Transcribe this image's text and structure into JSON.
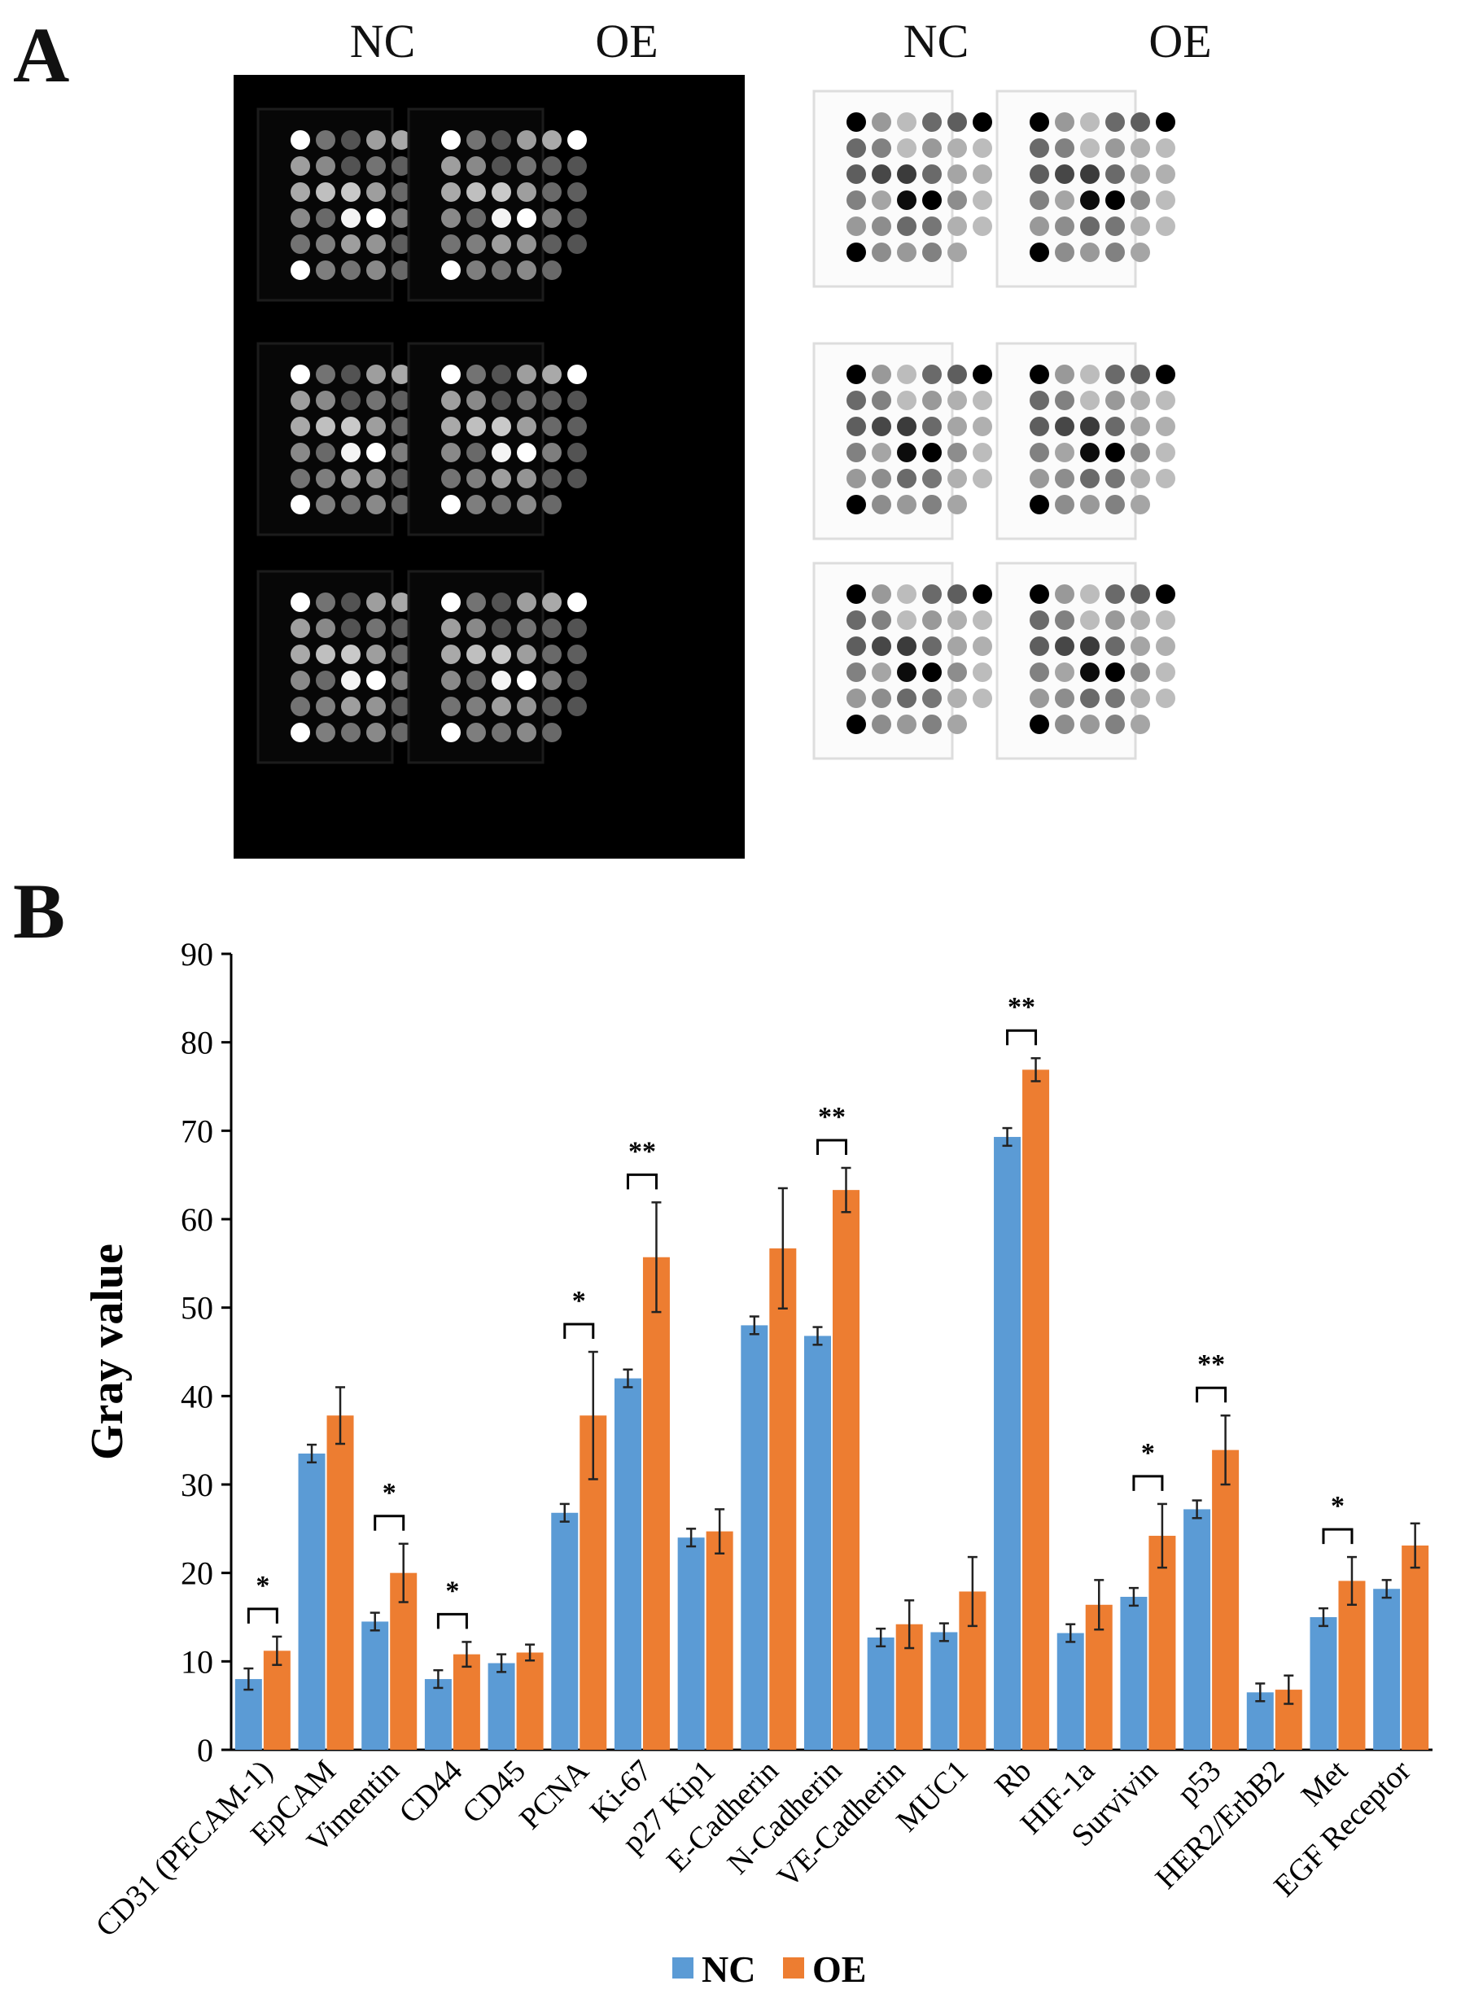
{
  "panels": {
    "a_label": "A",
    "b_label": "B",
    "blot_columns": [
      "NC",
      "OE",
      "NC",
      "OE"
    ]
  },
  "colors": {
    "nc": "#5b9bd5",
    "oe": "#ed7d31",
    "dark_blot_bg": "#000000",
    "light_blot_bg": "#ffffff"
  },
  "chart_data": {
    "type": "bar",
    "title": "",
    "xlabel": "",
    "ylabel": "Gray value",
    "ylim": [
      0,
      90
    ],
    "yticks": [
      0,
      10,
      20,
      30,
      40,
      50,
      60,
      70,
      80,
      90
    ],
    "grid": false,
    "legend_position": "bottom",
    "categories": [
      "CD31 (PECAM-1)",
      "EpCAM",
      "Vimentin",
      "CD44",
      "CD45",
      "PCNA",
      "Ki-67",
      "p27 Kip1",
      "E-Cadherin",
      "N-Cadherin",
      "VE-Cadherin",
      "MUC1",
      "Rb",
      "HIF-1a",
      "Survivin",
      "p53",
      "HER2/ErbB2",
      "Met",
      "EGF Receptor"
    ],
    "series": [
      {
        "name": "NC",
        "values": [
          8,
          33.5,
          14.5,
          8,
          9.8,
          26.8,
          42,
          24,
          48,
          46.8,
          12.7,
          13.3,
          69.3,
          13.2,
          17.3,
          27.2,
          6.5,
          15,
          18.2
        ],
        "errors": [
          1.2,
          1.0,
          1.0,
          1.0,
          1.0,
          1.0,
          1.0,
          1.0,
          1.0,
          1.0,
          1.0,
          1.0,
          1.0,
          1.0,
          1.0,
          1.0,
          1.0,
          1.0,
          1.0
        ]
      },
      {
        "name": "OE",
        "values": [
          11.2,
          37.8,
          20,
          10.8,
          11,
          37.8,
          55.7,
          24.7,
          56.7,
          63.3,
          14.2,
          17.9,
          76.9,
          16.4,
          24.2,
          33.9,
          6.8,
          19.1,
          23.1
        ],
        "errors": [
          1.6,
          3.2,
          3.3,
          1.4,
          0.9,
          7.2,
          6.2,
          2.5,
          6.8,
          2.5,
          2.7,
          3.9,
          1.3,
          2.8,
          3.6,
          3.9,
          1.6,
          2.7,
          2.5
        ]
      }
    ],
    "significance": [
      {
        "category": "CD31 (PECAM-1)",
        "label": "*"
      },
      {
        "category": "Vimentin",
        "label": "*"
      },
      {
        "category": "CD44",
        "label": "*"
      },
      {
        "category": "PCNA",
        "label": "*"
      },
      {
        "category": "Ki-67",
        "label": "**"
      },
      {
        "category": "N-Cadherin",
        "label": "**"
      },
      {
        "category": "Rb",
        "label": "**"
      },
      {
        "category": "Survivin",
        "label": "*"
      },
      {
        "category": "p53",
        "label": "**"
      },
      {
        "category": "Met",
        "label": "*"
      }
    ]
  }
}
